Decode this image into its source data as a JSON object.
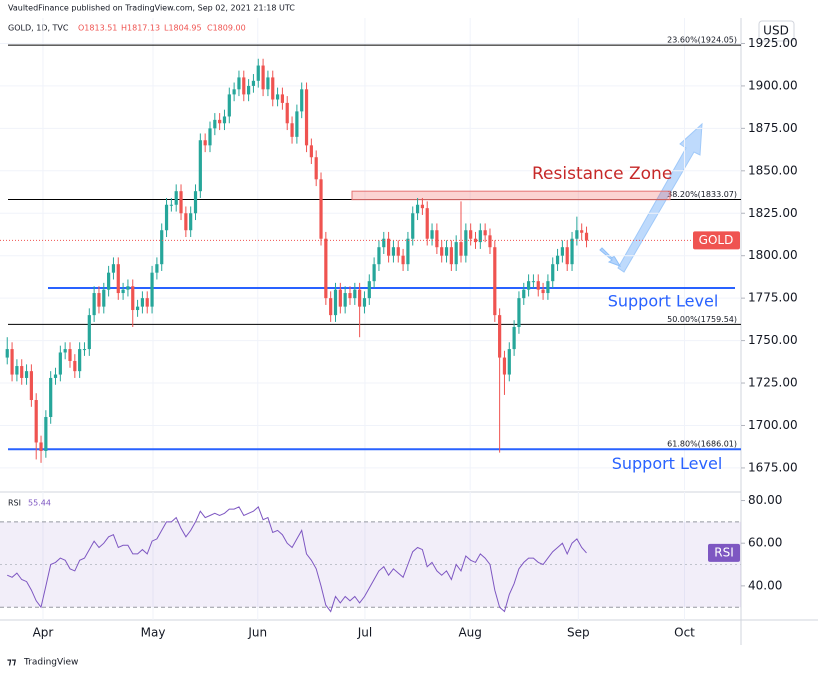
{
  "header": "VaultedFinance published on TradingView.com, Sep 02, 2021 21:18 UTC",
  "footer": "TradingView",
  "chart_data": {
    "type": "candlestick",
    "symbol": "GOLD, 1D, TVC",
    "ohlc_legend": [
      "O1813.51",
      "H1817.13",
      "L1804.95",
      "C1809.00"
    ],
    "currency": "USD",
    "price_tag": "GOLD",
    "up_color": "#26a69a",
    "down_color": "#ef5350",
    "ylim": [
      1662,
      1940
    ],
    "yticks": [
      {
        "value": 1675,
        "label": "1675.00"
      },
      {
        "value": 1700,
        "label": "1700.00"
      },
      {
        "value": 1725,
        "label": "1725.00"
      },
      {
        "value": 1750,
        "label": "1750.00"
      },
      {
        "value": 1775,
        "label": "1775.00"
      },
      {
        "value": 1800,
        "label": "1800.00"
      },
      {
        "value": 1825,
        "label": "1825.00"
      },
      {
        "value": 1850,
        "label": "1850.00"
      },
      {
        "value": 1875,
        "label": "1875.00"
      },
      {
        "value": 1900,
        "label": "1900.00"
      },
      {
        "value": 1925,
        "label": "1925.00"
      }
    ],
    "xlim": [
      -1.5,
      152
    ],
    "xticks": [
      {
        "value": 7.4,
        "label": "Apr"
      },
      {
        "value": 30.2,
        "label": "May"
      },
      {
        "value": 51.9,
        "label": "Jun"
      },
      {
        "value": 74.1,
        "label": "Jul"
      },
      {
        "value": 95.9,
        "label": "Aug"
      },
      {
        "value": 118.3,
        "label": "Sep"
      },
      {
        "value": 140.3,
        "label": "Oct"
      }
    ],
    "grid": true,
    "fib_levels": [
      {
        "value": 1924.05,
        "label": "23.60%(1924.05)"
      },
      {
        "value": 1833.07,
        "label": "38.20%(1833.07)"
      },
      {
        "value": 1759.54,
        "label": "50.00%(1759.54)"
      },
      {
        "value": 1686.01,
        "label": "61.80%(1686.01)"
      }
    ],
    "support_levels": [
      {
        "value": 1781,
        "label": "Support Level"
      },
      {
        "value": 1686,
        "label": "Support Level"
      }
    ],
    "resistance_zone": {
      "range": [
        1833,
        1838
      ],
      "label": "Resistance Zone"
    },
    "candles": [
      [
        1740,
        1752,
        1736,
        1745
      ],
      [
        1745,
        1749,
        1726,
        1730
      ],
      [
        1730,
        1739,
        1726,
        1735
      ],
      [
        1735,
        1739,
        1724,
        1728
      ],
      [
        1728,
        1736,
        1724,
        1732
      ],
      [
        1732,
        1736,
        1711,
        1715
      ],
      [
        1715,
        1719,
        1680,
        1690
      ],
      [
        1690,
        1694,
        1678,
        1685
      ],
      [
        1685,
        1709,
        1681,
        1705
      ],
      [
        1705,
        1732,
        1701,
        1728
      ],
      [
        1728,
        1734,
        1724,
        1730
      ],
      [
        1730,
        1747,
        1726,
        1743
      ],
      [
        1743,
        1749,
        1739,
        1745
      ],
      [
        1745,
        1749,
        1734,
        1738
      ],
      [
        1738,
        1742,
        1728,
        1732
      ],
      [
        1732,
        1749,
        1728,
        1745
      ],
      [
        1745,
        1749,
        1741,
        1745
      ],
      [
        1745,
        1769,
        1741,
        1765
      ],
      [
        1765,
        1782,
        1761,
        1778
      ],
      [
        1778,
        1782,
        1766,
        1770
      ],
      [
        1770,
        1784,
        1766,
        1780
      ],
      [
        1780,
        1794,
        1776,
        1790
      ],
      [
        1790,
        1799,
        1786,
        1795
      ],
      [
        1795,
        1799,
        1774,
        1778
      ],
      [
        1778,
        1784,
        1774,
        1780
      ],
      [
        1780,
        1786,
        1776,
        1782
      ],
      [
        1782,
        1786,
        1758,
        1768
      ],
      [
        1768,
        1774,
        1764,
        1770
      ],
      [
        1770,
        1779,
        1766,
        1775
      ],
      [
        1775,
        1779,
        1766,
        1770
      ],
      [
        1770,
        1794,
        1766,
        1790
      ],
      [
        1790,
        1799,
        1786,
        1795
      ],
      [
        1795,
        1819,
        1791,
        1815
      ],
      [
        1815,
        1834,
        1811,
        1830
      ],
      [
        1830,
        1834,
        1826,
        1830
      ],
      [
        1830,
        1842,
        1826,
        1838
      ],
      [
        1838,
        1842,
        1821,
        1825
      ],
      [
        1825,
        1829,
        1811,
        1815
      ],
      [
        1815,
        1829,
        1811,
        1825
      ],
      [
        1825,
        1842,
        1821,
        1838
      ],
      [
        1838,
        1872,
        1834,
        1868
      ],
      [
        1868,
        1872,
        1861,
        1865
      ],
      [
        1865,
        1879,
        1861,
        1875
      ],
      [
        1875,
        1884,
        1871,
        1880
      ],
      [
        1880,
        1884,
        1874,
        1878
      ],
      [
        1878,
        1886,
        1874,
        1882
      ],
      [
        1882,
        1899,
        1878,
        1895
      ],
      [
        1895,
        1902,
        1891,
        1898
      ],
      [
        1898,
        1909,
        1894,
        1905
      ],
      [
        1905,
        1909,
        1891,
        1895
      ],
      [
        1895,
        1904,
        1891,
        1900
      ],
      [
        1900,
        1907,
        1896,
        1903
      ],
      [
        1903,
        1916,
        1899,
        1912
      ],
      [
        1912,
        1916,
        1894,
        1898
      ],
      [
        1898,
        1909,
        1894,
        1905
      ],
      [
        1905,
        1909,
        1888,
        1892
      ],
      [
        1892,
        1899,
        1888,
        1895
      ],
      [
        1895,
        1899,
        1886,
        1890
      ],
      [
        1890,
        1894,
        1874,
        1878
      ],
      [
        1878,
        1882,
        1866,
        1870
      ],
      [
        1870,
        1889,
        1866,
        1885
      ],
      [
        1885,
        1902,
        1881,
        1898
      ],
      [
        1898,
        1902,
        1861,
        1865
      ],
      [
        1865,
        1869,
        1854,
        1858
      ],
      [
        1858,
        1862,
        1841,
        1845
      ],
      [
        1845,
        1849,
        1806,
        1810
      ],
      [
        1810,
        1814,
        1771,
        1775
      ],
      [
        1775,
        1779,
        1761,
        1765
      ],
      [
        1765,
        1784,
        1761,
        1780
      ],
      [
        1780,
        1784,
        1766,
        1770
      ],
      [
        1770,
        1782,
        1766,
        1778
      ],
      [
        1778,
        1782,
        1771,
        1775
      ],
      [
        1775,
        1784,
        1771,
        1780
      ],
      [
        1780,
        1784,
        1752,
        1770
      ],
      [
        1770,
        1779,
        1766,
        1775
      ],
      [
        1775,
        1789,
        1771,
        1785
      ],
      [
        1785,
        1799,
        1781,
        1795
      ],
      [
        1795,
        1809,
        1791,
        1805
      ],
      [
        1805,
        1814,
        1801,
        1810
      ],
      [
        1810,
        1814,
        1796,
        1800
      ],
      [
        1800,
        1809,
        1796,
        1805
      ],
      [
        1805,
        1809,
        1796,
        1800
      ],
      [
        1800,
        1804,
        1791,
        1795
      ],
      [
        1795,
        1814,
        1791,
        1810
      ],
      [
        1810,
        1829,
        1806,
        1825
      ],
      [
        1825,
        1834,
        1821,
        1830
      ],
      [
        1830,
        1834,
        1824,
        1828
      ],
      [
        1828,
        1832,
        1806,
        1810
      ],
      [
        1810,
        1819,
        1806,
        1815
      ],
      [
        1815,
        1819,
        1801,
        1805
      ],
      [
        1805,
        1809,
        1796,
        1800
      ],
      [
        1800,
        1809,
        1796,
        1805
      ],
      [
        1805,
        1809,
        1791,
        1795
      ],
      [
        1795,
        1812,
        1791,
        1808
      ],
      [
        1808,
        1832,
        1796,
        1800
      ],
      [
        1800,
        1819,
        1796,
        1815
      ],
      [
        1815,
        1819,
        1806,
        1810
      ],
      [
        1810,
        1814,
        1804,
        1808
      ],
      [
        1808,
        1819,
        1804,
        1815
      ],
      [
        1815,
        1819,
        1808,
        1812
      ],
      [
        1812,
        1816,
        1801,
        1805
      ],
      [
        1805,
        1809,
        1761,
        1765
      ],
      [
        1765,
        1769,
        1684,
        1740
      ],
      [
        1740,
        1744,
        1718,
        1730
      ],
      [
        1730,
        1749,
        1726,
        1745
      ],
      [
        1745,
        1762,
        1741,
        1758
      ],
      [
        1758,
        1779,
        1754,
        1775
      ],
      [
        1775,
        1784,
        1771,
        1780
      ],
      [
        1780,
        1789,
        1776,
        1785
      ],
      [
        1785,
        1789,
        1781,
        1785
      ],
      [
        1785,
        1789,
        1776,
        1780
      ],
      [
        1780,
        1784,
        1774,
        1778
      ],
      [
        1778,
        1789,
        1774,
        1785
      ],
      [
        1785,
        1799,
        1781,
        1795
      ],
      [
        1795,
        1804,
        1791,
        1800
      ],
      [
        1800,
        1809,
        1796,
        1805
      ],
      [
        1805,
        1809,
        1791,
        1795
      ],
      [
        1795,
        1814,
        1791,
        1810
      ],
      [
        1810,
        1823,
        1806,
        1815
      ],
      [
        1815,
        1819,
        1809,
        1813.51
      ],
      [
        1813.51,
        1817.13,
        1804.95,
        1809
      ]
    ],
    "rsi": {
      "name": "RSI",
      "color": "#7e57c2",
      "ylim": [
        24,
        84
      ],
      "yticks": [
        {
          "value": 40,
          "label": "40.00"
        },
        {
          "value": 60,
          "label": "60.00"
        },
        {
          "value": 80,
          "label": "80.00"
        }
      ],
      "band": [
        30,
        70
      ],
      "midline": 50,
      "values": [
        45,
        44,
        46,
        43,
        42,
        38,
        33,
        30,
        40,
        50,
        51,
        53,
        52,
        48,
        47,
        52,
        53,
        57,
        61,
        58,
        60,
        63,
        64,
        58,
        59,
        59,
        55,
        55,
        57,
        55,
        61,
        62,
        66,
        70,
        70,
        72,
        67,
        63,
        66,
        70,
        75,
        72,
        73,
        74,
        73,
        74,
        76,
        76,
        77,
        73,
        74,
        75,
        77,
        71,
        72,
        65,
        66,
        64,
        60,
        58,
        62,
        66,
        55,
        52,
        48,
        40,
        31,
        28,
        35,
        32,
        35,
        33,
        35,
        32,
        35,
        39,
        43,
        47,
        49,
        45,
        48,
        46,
        44,
        50,
        56,
        58,
        57,
        49,
        51,
        47,
        45,
        47,
        43,
        50,
        47,
        54,
        52,
        51,
        55,
        53,
        50,
        38,
        30,
        28,
        36,
        41,
        48,
        51,
        53,
        53,
        51,
        50,
        53,
        56,
        58,
        60,
        55,
        60,
        62,
        58,
        55.44
      ]
    }
  }
}
